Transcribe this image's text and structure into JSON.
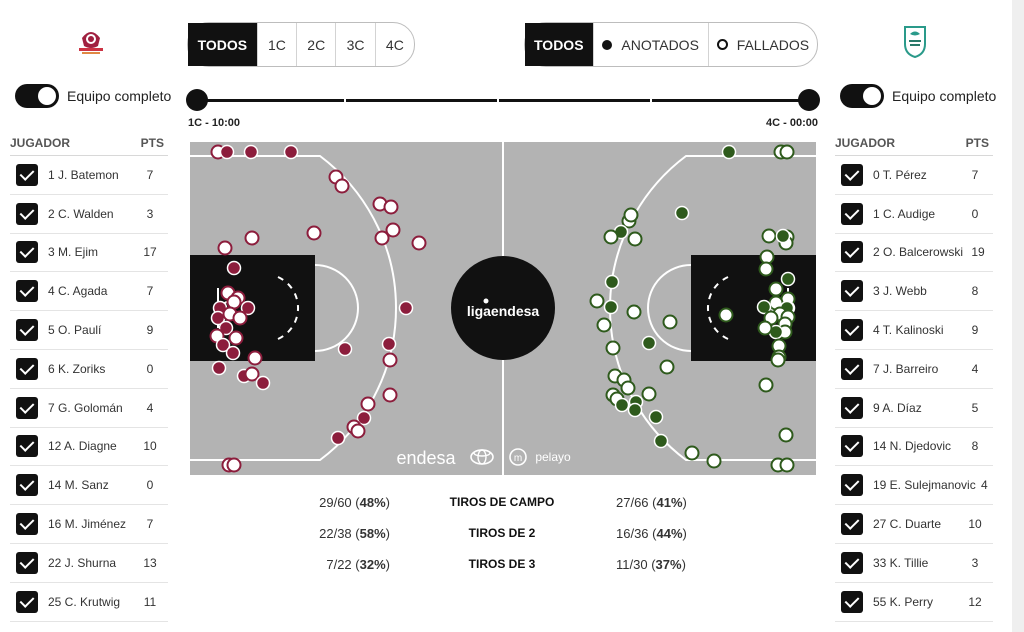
{
  "quarter_filter": {
    "all": "TODOS",
    "q1": "1C",
    "q2": "2C",
    "q3": "3C",
    "q4": "4C"
  },
  "result_filter": {
    "all": "TODOS",
    "made": "ANOTADOS",
    "missed": "FALLADOS"
  },
  "teams": {
    "left": {
      "toggle_label": "Equipo completo",
      "col_player": "JUGADOR",
      "col_pts": "PTS",
      "color": "#8c1d3c",
      "players": [
        {
          "name": "1 J. Batemon",
          "pts": "7"
        },
        {
          "name": "2 C. Walden",
          "pts": "3"
        },
        {
          "name": "3 M. Ejim",
          "pts": "17"
        },
        {
          "name": "4 C. Agada",
          "pts": "7"
        },
        {
          "name": "5 O. Paulí",
          "pts": "9"
        },
        {
          "name": "6 K. Zoriks",
          "pts": "0"
        },
        {
          "name": "7 G. Golomán",
          "pts": "4"
        },
        {
          "name": "12 A. Diagne",
          "pts": "10"
        },
        {
          "name": "14 M. Sanz",
          "pts": "0"
        },
        {
          "name": "16 M. Jiménez",
          "pts": "7"
        },
        {
          "name": "22 J. Shurna",
          "pts": "13"
        },
        {
          "name": "25 C. Krutwig",
          "pts": "11"
        }
      ]
    },
    "right": {
      "toggle_label": "Equipo completo",
      "col_player": "JUGADOR",
      "col_pts": "PTS",
      "color": "#2e5a1c",
      "players": [
        {
          "name": "0 T. Pérez",
          "pts": "7"
        },
        {
          "name": "1 C. Audige",
          "pts": "0"
        },
        {
          "name": "2 O. Balcerowski",
          "pts": "19"
        },
        {
          "name": "3 J. Webb",
          "pts": "8"
        },
        {
          "name": "4 T. Kalinoski",
          "pts": "9"
        },
        {
          "name": "7 J. Barreiro",
          "pts": "4"
        },
        {
          "name": "9 A. Díaz",
          "pts": "5"
        },
        {
          "name": "14 N. Djedovic",
          "pts": "8"
        },
        {
          "name": "19 E. Sulejmanovic",
          "pts": "4"
        },
        {
          "name": "27 C. Duarte",
          "pts": "10"
        },
        {
          "name": "33 K. Tillie",
          "pts": "3"
        },
        {
          "name": "55 K. Perry",
          "pts": "12"
        }
      ]
    }
  },
  "timeline": {
    "start_label": "1C - 10:00",
    "end_label": "4C - 00:00"
  },
  "court": {
    "center_logo_text": "ligaendesa",
    "sponsor_1": "endesa",
    "sponsor_2": "pelayo",
    "floor_color": "#b3b3b3",
    "paint_color": "#111111"
  },
  "stats": [
    {
      "label": "TIROS DE CAMPO",
      "left_made_att": "29/60",
      "left_pct": "48%",
      "right_made_att": "27/66",
      "right_pct": "41%"
    },
    {
      "label": "TIROS DE 2",
      "left_made_att": "22/38",
      "left_pct": "58%",
      "right_made_att": "16/36",
      "right_pct": "44%"
    },
    {
      "label": "TIROS DE 3",
      "left_made_att": "7/22",
      "left_pct": "32%",
      "right_made_att": "11/30",
      "right_pct": "37%"
    }
  ]
}
